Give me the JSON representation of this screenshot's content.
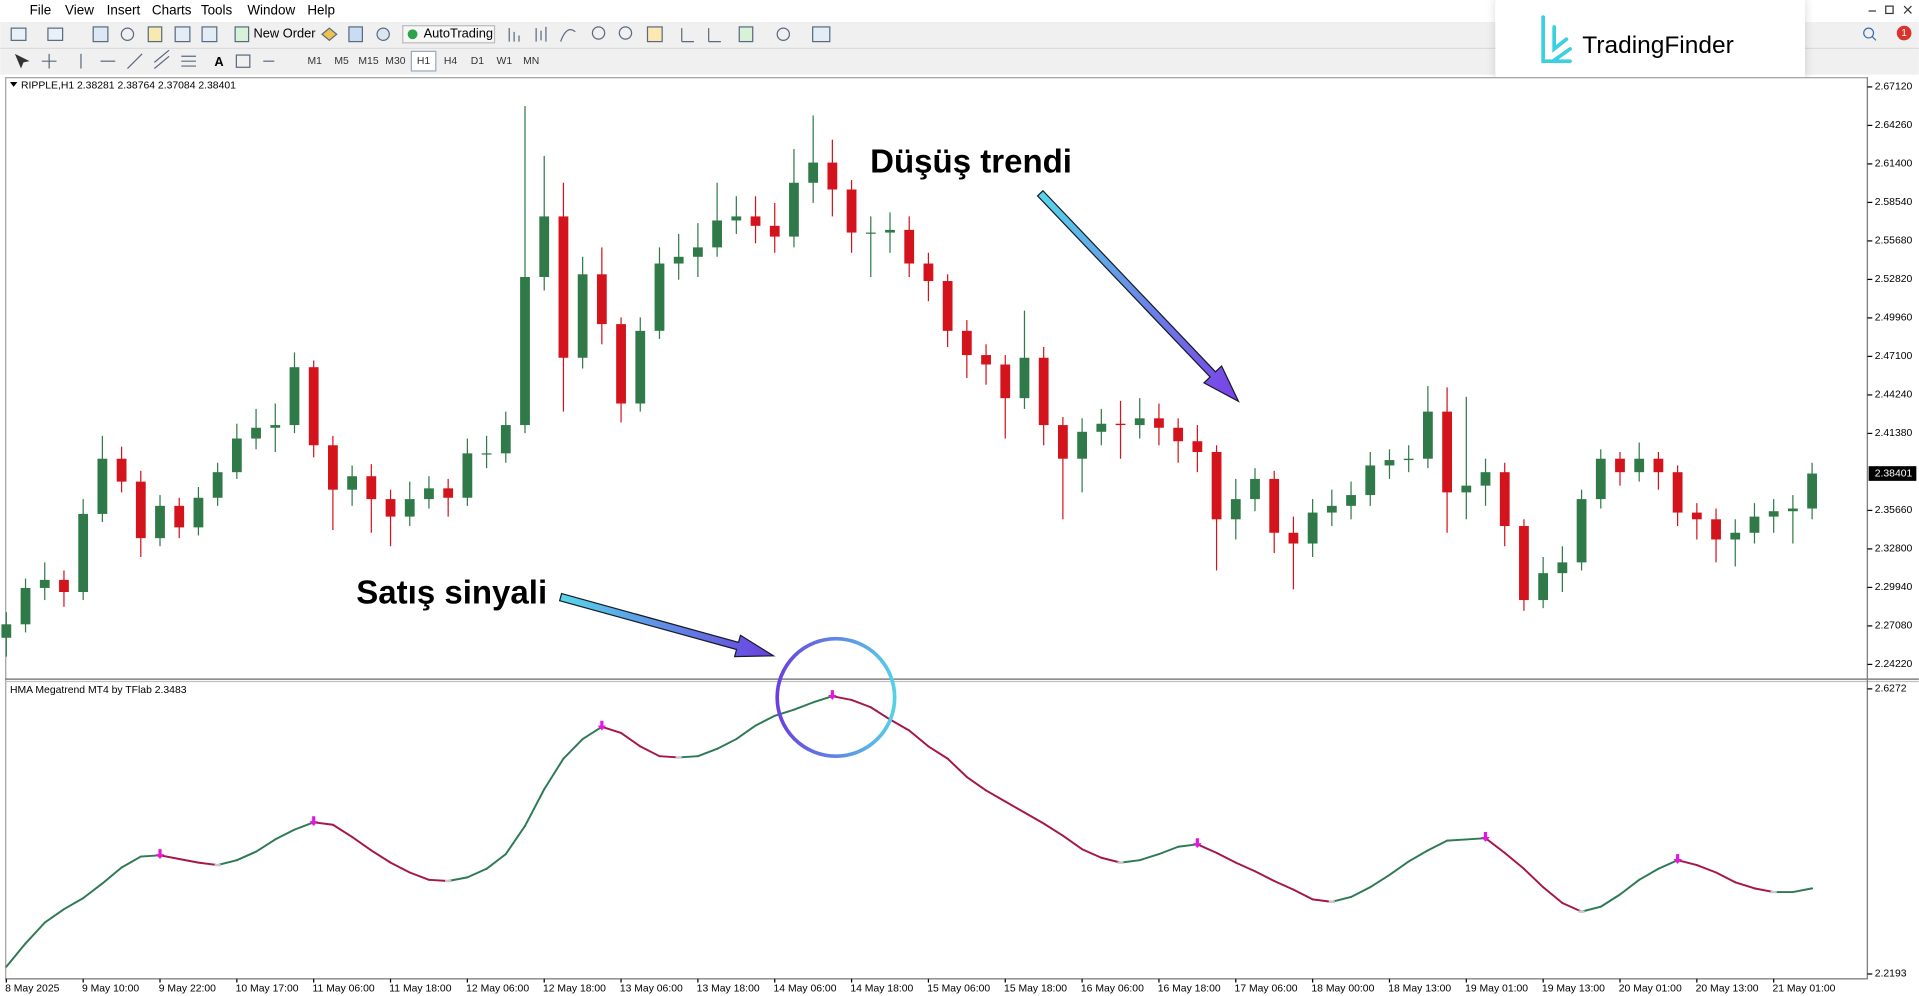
{
  "menu": [
    "File",
    "View",
    "Insert",
    "Charts",
    "Tools",
    "Window",
    "Help"
  ],
  "toolbar": {
    "new_order": "New Order",
    "auto_trading": "AutoTrading",
    "timeframes": [
      "M1",
      "M5",
      "M15",
      "M30",
      "H1",
      "H4",
      "D1",
      "W1",
      "MN"
    ]
  },
  "logo": "TradingFinder",
  "notification_badge": 1,
  "annotations": {
    "trend": "Düşüş trendi",
    "signal": "Satış sinyali"
  },
  "chart_data": [
    {
      "type": "candlestick",
      "title": "RIPPLE,H1 2.38281 2.38764 2.37084 2.38401",
      "categories": [
        "8 May 2025",
        null,
        null,
        null,
        "9 May 10:00",
        null,
        null,
        null,
        "9 May 22:00",
        null,
        null,
        null,
        "10 May 17:00",
        null,
        null,
        null,
        "11 May 06:00",
        null,
        null,
        null,
        "11 May 18:00",
        null,
        null,
        null,
        "12 May 06:00",
        null,
        null,
        null,
        "12 May 18:00",
        null,
        null,
        null,
        "13 May 06:00",
        null,
        null,
        null,
        "13 May 18:00",
        null,
        null,
        null,
        "14 May 06:00",
        null,
        null,
        null,
        "14 May 18:00",
        null,
        null,
        null,
        "15 May 06:00",
        null,
        null,
        null,
        "15 May 18:00",
        null,
        null,
        null,
        "16 May 06:00",
        null,
        null,
        null,
        "16 May 18:00",
        null,
        null,
        null,
        "17 May 06:00",
        null,
        null,
        null,
        "18 May 00:00",
        null,
        null,
        null,
        "18 May 13:00",
        null,
        null,
        null,
        "19 May 01:00",
        null,
        null,
        null,
        "19 May 13:00",
        null,
        null,
        null,
        "20 May 01:00",
        null,
        null,
        null,
        "20 May 13:00",
        null,
        null,
        null,
        "21 May 01:00",
        null,
        null
      ],
      "open": [
        2.262,
        2.272,
        2.299,
        2.305,
        2.296,
        2.354,
        2.395,
        2.378,
        2.336,
        2.36,
        2.344,
        2.366,
        2.385,
        2.41,
        2.418,
        2.42,
        2.463,
        2.405,
        2.372,
        2.382,
        2.365,
        2.352,
        2.365,
        2.373,
        2.366,
        2.399,
        2.399,
        2.42,
        2.53,
        2.575,
        2.47,
        2.532,
        2.495,
        2.436,
        2.49,
        2.54,
        2.545,
        2.552,
        2.572,
        2.575,
        2.568,
        2.56,
        2.6,
        2.615,
        2.595,
        2.563,
        2.563,
        2.565,
        2.54,
        2.527,
        2.49,
        2.472,
        2.465,
        2.44,
        2.47,
        2.42,
        2.395,
        2.415,
        2.421,
        2.42,
        2.425,
        2.418,
        2.408,
        2.4,
        2.35,
        2.365,
        2.38,
        2.34,
        2.332,
        2.355,
        2.36,
        2.368,
        2.39,
        2.394,
        2.395,
        2.43,
        2.37,
        2.375,
        2.385,
        2.345,
        2.29,
        2.31,
        2.318,
        2.365,
        2.395,
        2.385,
        2.395,
        2.385,
        2.355,
        2.35,
        2.335,
        2.34,
        2.352,
        2.356,
        2.358
      ],
      "high": [
        2.281,
        2.306,
        2.318,
        2.312,
        2.365,
        2.412,
        2.404,
        2.386,
        2.368,
        2.366,
        2.374,
        2.392,
        2.421,
        2.432,
        2.436,
        2.474,
        2.468,
        2.412,
        2.39,
        2.391,
        2.372,
        2.378,
        2.382,
        2.38,
        2.41,
        2.412,
        2.43,
        2.657,
        2.62,
        2.6,
        2.545,
        2.552,
        2.5,
        2.5,
        2.552,
        2.562,
        2.57,
        2.6,
        2.59,
        2.59,
        2.585,
        2.625,
        2.65,
        2.632,
        2.602,
        2.575,
        2.578,
        2.575,
        2.548,
        2.532,
        2.498,
        2.48,
        2.472,
        2.505,
        2.478,
        2.426,
        2.425,
        2.432,
        2.438,
        2.44,
        2.436,
        2.425,
        2.42,
        2.405,
        2.38,
        2.388,
        2.386,
        2.352,
        2.365,
        2.372,
        2.378,
        2.4,
        2.402,
        2.405,
        2.449,
        2.448,
        2.441,
        2.395,
        2.392,
        2.35,
        2.322,
        2.33,
        2.372,
        2.402,
        2.4,
        2.407,
        2.4,
        2.39,
        2.362,
        2.358,
        2.35,
        2.362,
        2.365,
        2.368,
        2.392
      ],
      "low": [
        2.248,
        2.266,
        2.29,
        2.285,
        2.29,
        2.348,
        2.37,
        2.322,
        2.33,
        2.336,
        2.338,
        2.36,
        2.38,
        2.402,
        2.4,
        2.414,
        2.396,
        2.342,
        2.36,
        2.34,
        2.33,
        2.345,
        2.358,
        2.352,
        2.36,
        2.388,
        2.392,
        2.414,
        2.52,
        2.43,
        2.462,
        2.48,
        2.422,
        2.43,
        2.484,
        2.528,
        2.53,
        2.545,
        2.562,
        2.555,
        2.548,
        2.552,
        2.585,
        2.575,
        2.548,
        2.53,
        2.548,
        2.53,
        2.512,
        2.478,
        2.455,
        2.45,
        2.41,
        2.432,
        2.405,
        2.35,
        2.37,
        2.405,
        2.395,
        2.41,
        2.405,
        2.392,
        2.385,
        2.312,
        2.335,
        2.356,
        2.325,
        2.298,
        2.322,
        2.345,
        2.35,
        2.36,
        2.38,
        2.385,
        2.388,
        2.34,
        2.35,
        2.36,
        2.33,
        2.282,
        2.284,
        2.296,
        2.312,
        2.358,
        2.375,
        2.378,
        2.372,
        2.345,
        2.335,
        2.318,
        2.315,
        2.332,
        2.34,
        2.332,
        2.35
      ],
      "close": [
        2.272,
        2.299,
        2.305,
        2.296,
        2.354,
        2.395,
        2.378,
        2.336,
        2.36,
        2.344,
        2.366,
        2.385,
        2.41,
        2.418,
        2.42,
        2.463,
        2.405,
        2.372,
        2.382,
        2.365,
        2.352,
        2.365,
        2.373,
        2.366,
        2.399,
        2.399,
        2.42,
        2.53,
        2.575,
        2.47,
        2.532,
        2.495,
        2.436,
        2.49,
        2.54,
        2.545,
        2.552,
        2.572,
        2.575,
        2.568,
        2.56,
        2.6,
        2.615,
        2.595,
        2.563,
        2.563,
        2.565,
        2.54,
        2.527,
        2.49,
        2.472,
        2.465,
        2.44,
        2.47,
        2.42,
        2.395,
        2.415,
        2.421,
        2.42,
        2.425,
        2.418,
        2.408,
        2.4,
        2.35,
        2.365,
        2.38,
        2.34,
        2.332,
        2.355,
        2.36,
        2.368,
        2.39,
        2.394,
        2.395,
        2.43,
        2.37,
        2.375,
        2.385,
        2.345,
        2.29,
        2.31,
        2.318,
        2.365,
        2.395,
        2.385,
        2.395,
        2.385,
        2.355,
        2.35,
        2.335,
        2.34,
        2.352,
        2.356,
        2.358,
        2.384
      ],
      "up_color": "#2f7a48",
      "down_color": "#d4141c",
      "last_price": 2.38401,
      "ylim": [
        2.2313,
        2.6785
      ],
      "yticks": [
        {
          "value": 2.6712,
          "label": "2.67120"
        },
        {
          "value": 2.6426,
          "label": "2.64260"
        },
        {
          "value": 2.614,
          "label": "2.61400"
        },
        {
          "value": 2.5854,
          "label": "2.58540"
        },
        {
          "value": 2.5568,
          "label": "2.55680"
        },
        {
          "value": 2.5282,
          "label": "2.52820"
        },
        {
          "value": 2.4996,
          "label": "2.49960"
        },
        {
          "value": 2.471,
          "label": "2.47100"
        },
        {
          "value": 2.4424,
          "label": "2.44240"
        },
        {
          "value": 2.4138,
          "label": "2.41380"
        },
        {
          "value": 2.3566,
          "label": "2.35660"
        },
        {
          "value": 2.328,
          "label": "2.32800"
        },
        {
          "value": 2.2994,
          "label": "2.29940"
        },
        {
          "value": 2.2708,
          "label": "2.27080"
        },
        {
          "value": 2.2422,
          "label": "2.24220"
        }
      ]
    },
    {
      "type": "line",
      "title": "HMA Megatrend MT4 by TFlab 2.3483",
      "values": [
        2.2297,
        2.263,
        2.2928,
        2.312,
        2.3278,
        2.3488,
        2.3716,
        2.3873,
        2.3891,
        2.3838,
        2.3786,
        2.3751,
        2.3821,
        2.3943,
        2.4118,
        2.4258,
        2.4363,
        2.4328,
        2.4153,
        2.3961,
        2.3786,
        2.3645,
        2.354,
        2.3523,
        2.3575,
        2.3698,
        2.3908,
        2.4311,
        2.4836,
        2.5274,
        2.5554,
        2.5729,
        2.5642,
        2.5449,
        2.5309,
        2.5291,
        2.5309,
        2.5414,
        2.5554,
        2.5747,
        2.5887,
        2.5974,
        2.6079,
        2.6167,
        2.6114,
        2.6009,
        2.5834,
        2.5677,
        2.5449,
        2.5274,
        2.5011,
        2.4819,
        2.4661,
        2.4503,
        2.4346,
        2.4171,
        2.3978,
        2.3856,
        2.3786,
        2.3821,
        2.3908,
        2.4013,
        2.4048,
        2.3926,
        2.3786,
        2.3663,
        2.3523,
        2.34,
        2.326,
        2.3225,
        2.3295,
        2.3435,
        2.361,
        2.3803,
        2.3961,
        2.4101,
        2.4118,
        2.4136,
        2.3926,
        2.3698,
        2.3435,
        2.3208,
        2.3085,
        2.3155,
        2.333,
        2.354,
        2.3698,
        2.3821,
        2.3751,
        2.3645,
        2.3505,
        2.3418,
        2.3365,
        2.3365,
        2.3418
      ],
      "up_color": "#2e7a55",
      "down_color": "#a5174a",
      "signal_color": "#e317e3",
      "ylim": [
        2.2123,
        2.6377
      ],
      "yticks": [
        2.6272,
        2.2193
      ]
    }
  ]
}
